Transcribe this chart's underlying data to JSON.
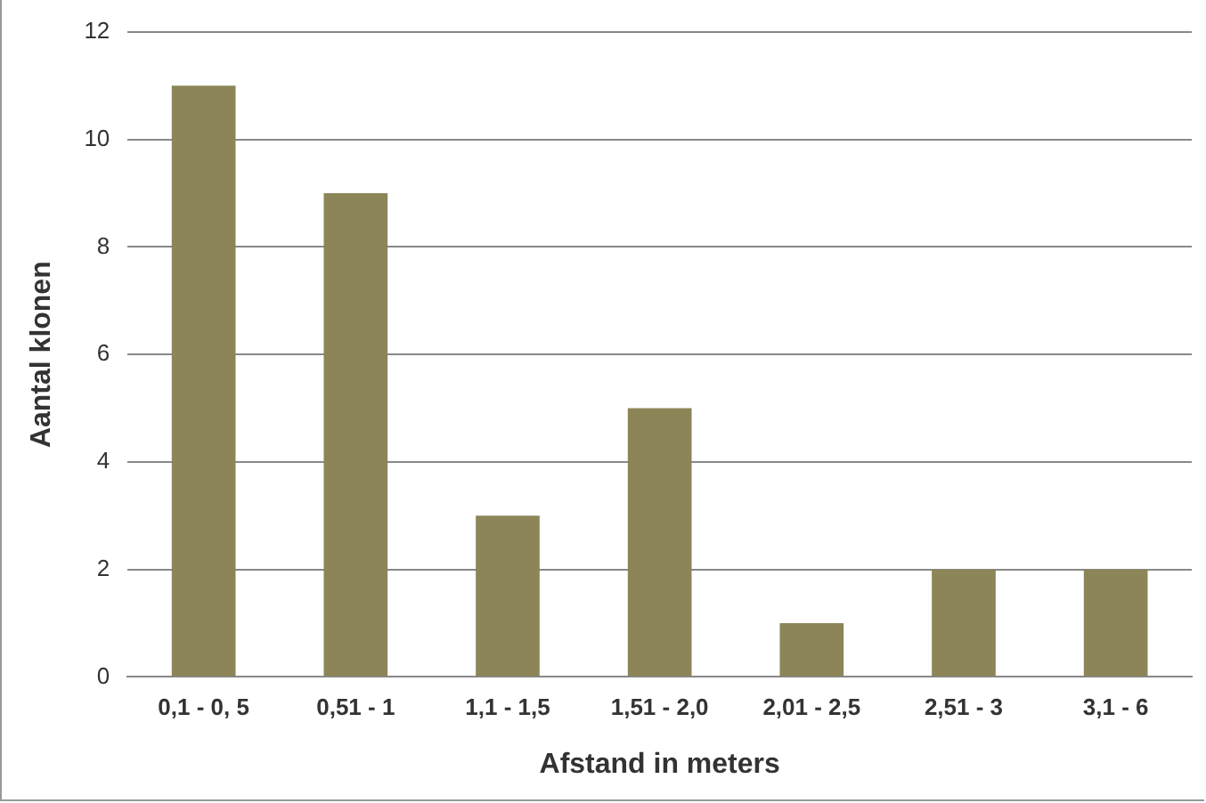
{
  "chart_data": {
    "type": "bar",
    "xlabel": "Afstand in meters",
    "ylabel": "Aantal klonen",
    "categories": [
      "0,1 - 0, 5",
      "0,51 - 1",
      "1,1 - 1,5",
      "1,51 - 2,0",
      "2,01 - 2,5",
      "2,51 - 3",
      "3,1 - 6"
    ],
    "values": [
      11,
      9,
      3,
      5,
      1,
      2,
      2
    ],
    "color": "#8b8558",
    "ylim": [
      0,
      12
    ],
    "yticks": [
      0,
      2,
      4,
      6,
      8,
      10,
      12
    ],
    "grid": "y",
    "legend": false
  }
}
